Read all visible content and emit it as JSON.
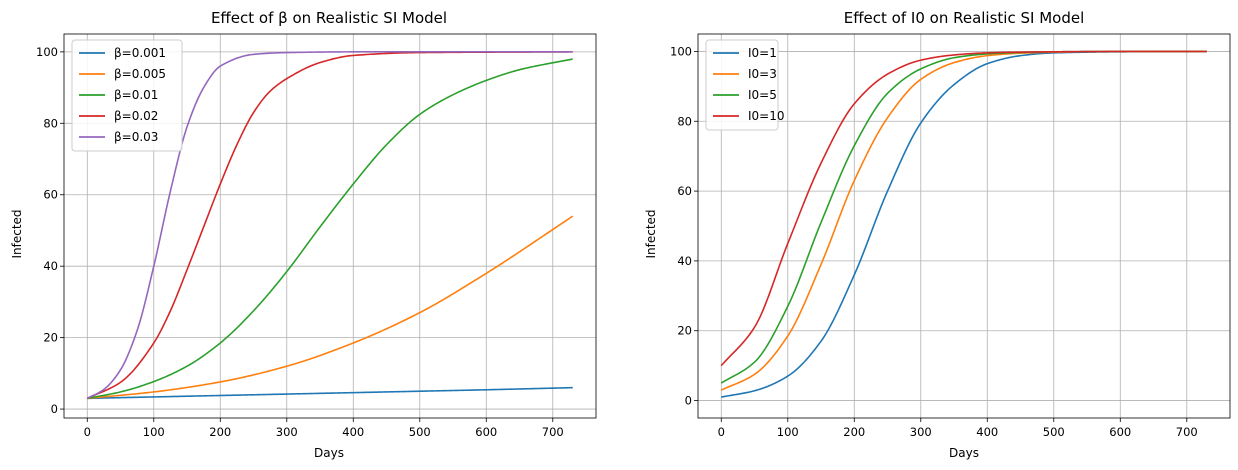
{
  "chart_data": [
    {
      "type": "line",
      "title": "Effect of β on Realistic SI Model",
      "xlabel": "Days",
      "ylabel": "Infected",
      "xlim": [
        -35,
        765
      ],
      "ylim": [
        -2.5,
        105
      ],
      "xticks": [
        0,
        100,
        200,
        300,
        400,
        500,
        600,
        700
      ],
      "yticks": [
        0,
        20,
        40,
        60,
        80,
        100
      ],
      "grid": true,
      "legend": "top-left",
      "series": [
        {
          "name": "β=0.001",
          "color": "#1f77b4",
          "x": [
            0,
            100,
            200,
            300,
            400,
            500,
            600,
            730
          ],
          "y": [
            3,
            3.4,
            3.8,
            4.2,
            4.6,
            5.0,
            5.4,
            6.0
          ]
        },
        {
          "name": "β=0.005",
          "color": "#ff7f0e",
          "x": [
            0,
            100,
            200,
            300,
            400,
            500,
            600,
            730
          ],
          "y": [
            3,
            4.8,
            7.6,
            12,
            18.5,
            27,
            38,
            54
          ]
        },
        {
          "name": "β=0.01",
          "color": "#2ca02c",
          "x": [
            0,
            50,
            100,
            150,
            200,
            250,
            300,
            350,
            400,
            450,
            500,
            550,
            600,
            650,
            730
          ],
          "y": [
            3,
            4.8,
            7.7,
            12,
            18.5,
            27.5,
            38.5,
            51,
            63,
            74,
            82.5,
            88,
            92,
            95,
            98
          ]
        },
        {
          "name": "β=0.02",
          "color": "#d62728",
          "x": [
            0,
            50,
            100,
            125,
            150,
            175,
            200,
            225,
            250,
            275,
            300,
            350,
            400,
            500,
            730
          ],
          "y": [
            3,
            7.5,
            18.5,
            27.5,
            39,
            51,
            63,
            74,
            83,
            89,
            92.5,
            97,
            99,
            99.8,
            100
          ]
        },
        {
          "name": "β=0.03",
          "color": "#9467bd",
          "x": [
            0,
            25,
            50,
            75,
            100,
            125,
            150,
            175,
            200,
            250,
            300,
            400,
            730
          ],
          "y": [
            3,
            5.5,
            11,
            22,
            40,
            61,
            79,
            90,
            96,
            99.3,
            99.8,
            100,
            100
          ]
        }
      ]
    },
    {
      "type": "line",
      "title": "Effect of I0 on Realistic SI Model",
      "xlabel": "Days",
      "ylabel": "Infected",
      "xlim": [
        -35,
        765
      ],
      "ylim": [
        -5,
        105
      ],
      "xticks": [
        0,
        100,
        200,
        300,
        400,
        500,
        600,
        700
      ],
      "yticks": [
        0,
        20,
        40,
        60,
        80,
        100
      ],
      "grid": true,
      "legend": "top-left",
      "series": [
        {
          "name": "I0=1",
          "color": "#1f77b4",
          "x": [
            0,
            50,
            100,
            150,
            200,
            250,
            300,
            350,
            400,
            450,
            500,
            600,
            730
          ],
          "y": [
            1,
            2.8,
            7,
            17,
            36,
            60,
            79.5,
            90.5,
            96.5,
            98.8,
            99.6,
            99.9,
            100
          ]
        },
        {
          "name": "I0=3",
          "color": "#ff7f0e",
          "x": [
            0,
            50,
            100,
            150,
            200,
            250,
            300,
            350,
            400,
            450,
            500,
            600,
            730
          ],
          "y": [
            3,
            7.5,
            18.5,
            39,
            63,
            81,
            92,
            96.8,
            98.8,
            99.5,
            99.8,
            100,
            100
          ]
        },
        {
          "name": "I0=5",
          "color": "#2ca02c",
          "x": [
            0,
            50,
            100,
            150,
            200,
            250,
            300,
            350,
            400,
            450,
            500,
            600,
            730
          ],
          "y": [
            5,
            11,
            27,
            51,
            73,
            88,
            95,
            98.2,
            99.3,
            99.7,
            99.9,
            100,
            100
          ]
        },
        {
          "name": "I0=10",
          "color": "#d62728",
          "x": [
            0,
            50,
            100,
            150,
            200,
            250,
            300,
            350,
            400,
            450,
            500,
            600,
            730
          ],
          "y": [
            10,
            21,
            45,
            68,
            85,
            93.5,
            97.5,
            99,
            99.6,
            99.8,
            99.9,
            100,
            100
          ]
        }
      ]
    }
  ]
}
